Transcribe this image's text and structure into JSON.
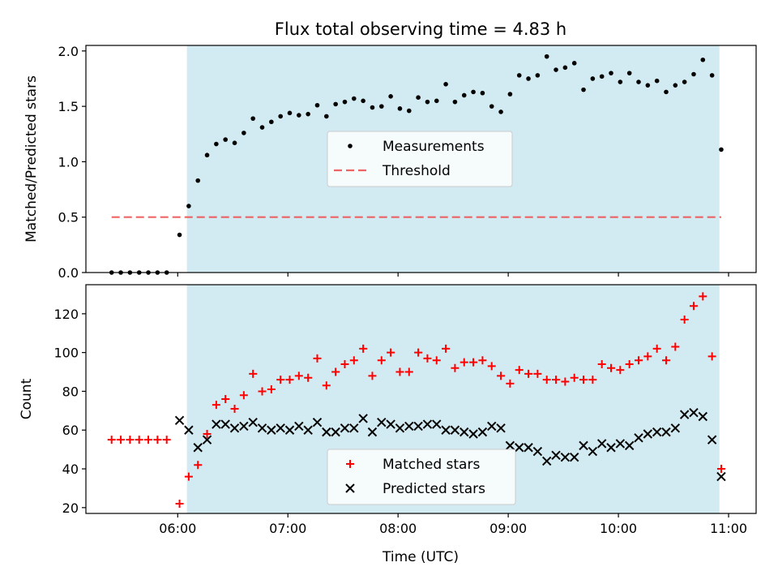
{
  "title": "Flux total observing time = 4.83 h",
  "xlabel": "Time (UTC)",
  "colors": {
    "highlight": "#add8e6",
    "measurement": "#000000",
    "threshold": "#ee5555",
    "matched": "#ff0000",
    "predicted": "#000000"
  },
  "chart_data": [
    {
      "type": "scatter",
      "ylabel": "Matched/Predicted stars",
      "xlim": [
        "05:10",
        "11:15"
      ],
      "ylim": [
        0,
        2.05
      ],
      "x_ticks": [
        "06:00",
        "07:00",
        "08:00",
        "09:00",
        "10:00",
        "11:00"
      ],
      "y_ticks": [
        "0.0",
        "0.5",
        "1.0",
        "1.5",
        "2.0"
      ],
      "shaded_span": [
        "06:05",
        "10:55"
      ],
      "legend_position": "center",
      "series": [
        {
          "name": "Measurements",
          "marker": "dot",
          "points": [
            [
              "05:24",
              0.0
            ],
            [
              "05:29",
              0.0
            ],
            [
              "05:34",
              0.0
            ],
            [
              "05:39",
              0.0
            ],
            [
              "05:44",
              0.0
            ],
            [
              "05:49",
              0.0
            ],
            [
              "05:54",
              0.0
            ],
            [
              "06:01",
              0.34
            ],
            [
              "06:06",
              0.6
            ],
            [
              "06:11",
              0.83
            ],
            [
              "06:16",
              1.06
            ],
            [
              "06:21",
              1.16
            ],
            [
              "06:26",
              1.2
            ],
            [
              "06:31",
              1.17
            ],
            [
              "06:36",
              1.26
            ],
            [
              "06:41",
              1.39
            ],
            [
              "06:46",
              1.31
            ],
            [
              "06:51",
              1.36
            ],
            [
              "06:56",
              1.41
            ],
            [
              "07:01",
              1.44
            ],
            [
              "07:06",
              1.42
            ],
            [
              "07:11",
              1.43
            ],
            [
              "07:16",
              1.51
            ],
            [
              "07:21",
              1.41
            ],
            [
              "07:26",
              1.52
            ],
            [
              "07:31",
              1.54
            ],
            [
              "07:36",
              1.57
            ],
            [
              "07:41",
              1.55
            ],
            [
              "07:46",
              1.49
            ],
            [
              "07:51",
              1.5
            ],
            [
              "07:56",
              1.59
            ],
            [
              "08:01",
              1.48
            ],
            [
              "08:06",
              1.46
            ],
            [
              "08:11",
              1.58
            ],
            [
              "08:16",
              1.54
            ],
            [
              "08:21",
              1.55
            ],
            [
              "08:26",
              1.7
            ],
            [
              "08:31",
              1.54
            ],
            [
              "08:36",
              1.6
            ],
            [
              "08:41",
              1.63
            ],
            [
              "08:46",
              1.62
            ],
            [
              "08:51",
              1.5
            ],
            [
              "08:56",
              1.45
            ],
            [
              "09:01",
              1.61
            ],
            [
              "09:06",
              1.78
            ],
            [
              "09:11",
              1.75
            ],
            [
              "09:16",
              1.78
            ],
            [
              "09:21",
              1.95
            ],
            [
              "09:26",
              1.83
            ],
            [
              "09:31",
              1.85
            ],
            [
              "09:36",
              1.89
            ],
            [
              "09:41",
              1.65
            ],
            [
              "09:46",
              1.75
            ],
            [
              "09:51",
              1.77
            ],
            [
              "09:56",
              1.8
            ],
            [
              "10:01",
              1.72
            ],
            [
              "10:06",
              1.8
            ],
            [
              "10:11",
              1.72
            ],
            [
              "10:16",
              1.69
            ],
            [
              "10:21",
              1.73
            ],
            [
              "10:26",
              1.63
            ],
            [
              "10:31",
              1.69
            ],
            [
              "10:36",
              1.72
            ],
            [
              "10:41",
              1.79
            ],
            [
              "10:46",
              1.92
            ],
            [
              "10:51",
              1.78
            ],
            [
              "10:56",
              1.11
            ]
          ]
        },
        {
          "name": "Threshold",
          "marker": "dashed-line",
          "points": [
            [
              "05:24",
              0.5
            ],
            [
              "10:56",
              0.5
            ]
          ]
        }
      ]
    },
    {
      "type": "scatter",
      "ylabel": "Count",
      "xlim": [
        "05:10",
        "11:15"
      ],
      "ylim": [
        17,
        135
      ],
      "x_ticks": [
        "06:00",
        "07:00",
        "08:00",
        "09:00",
        "10:00",
        "11:00"
      ],
      "y_ticks": [
        "20",
        "40",
        "60",
        "80",
        "100",
        "120"
      ],
      "shaded_span": [
        "06:05",
        "10:55"
      ],
      "legend_position": "lower center",
      "series": [
        {
          "name": "Matched stars",
          "marker": "plus",
          "points": [
            [
              "05:24",
              55
            ],
            [
              "05:29",
              55
            ],
            [
              "05:34",
              55
            ],
            [
              "05:39",
              55
            ],
            [
              "05:44",
              55
            ],
            [
              "05:49",
              55
            ],
            [
              "05:54",
              55
            ],
            [
              "06:01",
              22
            ],
            [
              "06:06",
              36
            ],
            [
              "06:11",
              42
            ],
            [
              "06:16",
              58
            ],
            [
              "06:21",
              73
            ],
            [
              "06:26",
              76
            ],
            [
              "06:31",
              71
            ],
            [
              "06:36",
              78
            ],
            [
              "06:41",
              89
            ],
            [
              "06:46",
              80
            ],
            [
              "06:51",
              81
            ],
            [
              "06:56",
              86
            ],
            [
              "07:01",
              86
            ],
            [
              "07:06",
              88
            ],
            [
              "07:11",
              87
            ],
            [
              "07:16",
              97
            ],
            [
              "07:21",
              83
            ],
            [
              "07:26",
              90
            ],
            [
              "07:31",
              94
            ],
            [
              "07:36",
              96
            ],
            [
              "07:41",
              102
            ],
            [
              "07:46",
              88
            ],
            [
              "07:51",
              96
            ],
            [
              "07:56",
              100
            ],
            [
              "08:01",
              90
            ],
            [
              "08:06",
              90
            ],
            [
              "08:11",
              100
            ],
            [
              "08:16",
              97
            ],
            [
              "08:21",
              96
            ],
            [
              "08:26",
              102
            ],
            [
              "08:31",
              92
            ],
            [
              "08:36",
              95
            ],
            [
              "08:41",
              95
            ],
            [
              "08:46",
              96
            ],
            [
              "08:51",
              93
            ],
            [
              "08:56",
              88
            ],
            [
              "09:01",
              84
            ],
            [
              "09:06",
              91
            ],
            [
              "09:11",
              89
            ],
            [
              "09:16",
              89
            ],
            [
              "09:21",
              86
            ],
            [
              "09:26",
              86
            ],
            [
              "09:31",
              85
            ],
            [
              "09:36",
              87
            ],
            [
              "09:41",
              86
            ],
            [
              "09:46",
              86
            ],
            [
              "09:51",
              94
            ],
            [
              "09:56",
              92
            ],
            [
              "10:01",
              91
            ],
            [
              "10:06",
              94
            ],
            [
              "10:11",
              96
            ],
            [
              "10:16",
              98
            ],
            [
              "10:21",
              102
            ],
            [
              "10:26",
              96
            ],
            [
              "10:31",
              103
            ],
            [
              "10:36",
              117
            ],
            [
              "10:41",
              124
            ],
            [
              "10:46",
              129
            ],
            [
              "10:51",
              98
            ],
            [
              "10:56",
              40
            ]
          ]
        },
        {
          "name": "Predicted stars",
          "marker": "x",
          "points": [
            [
              "06:01",
              65
            ],
            [
              "06:06",
              60
            ],
            [
              "06:11",
              51
            ],
            [
              "06:16",
              55
            ],
            [
              "06:21",
              63
            ],
            [
              "06:26",
              63
            ],
            [
              "06:31",
              61
            ],
            [
              "06:36",
              62
            ],
            [
              "06:41",
              64
            ],
            [
              "06:46",
              61
            ],
            [
              "06:51",
              60
            ],
            [
              "06:56",
              61
            ],
            [
              "07:01",
              60
            ],
            [
              "07:06",
              62
            ],
            [
              "07:11",
              60
            ],
            [
              "07:16",
              64
            ],
            [
              "07:21",
              59
            ],
            [
              "07:26",
              59
            ],
            [
              "07:31",
              61
            ],
            [
              "07:36",
              61
            ],
            [
              "07:41",
              66
            ],
            [
              "07:46",
              59
            ],
            [
              "07:51",
              64
            ],
            [
              "07:56",
              63
            ],
            [
              "08:01",
              61
            ],
            [
              "08:06",
              62
            ],
            [
              "08:11",
              62
            ],
            [
              "08:16",
              63
            ],
            [
              "08:21",
              63
            ],
            [
              "08:26",
              60
            ],
            [
              "08:31",
              60
            ],
            [
              "08:36",
              59
            ],
            [
              "08:41",
              58
            ],
            [
              "08:46",
              59
            ],
            [
              "08:51",
              62
            ],
            [
              "08:56",
              61
            ],
            [
              "09:01",
              52
            ],
            [
              "09:06",
              51
            ],
            [
              "09:11",
              51
            ],
            [
              "09:16",
              49
            ],
            [
              "09:21",
              44
            ],
            [
              "09:26",
              47
            ],
            [
              "09:31",
              46
            ],
            [
              "09:36",
              46
            ],
            [
              "09:41",
              52
            ],
            [
              "09:46",
              49
            ],
            [
              "09:51",
              53
            ],
            [
              "09:56",
              51
            ],
            [
              "10:01",
              53
            ],
            [
              "10:06",
              52
            ],
            [
              "10:11",
              56
            ],
            [
              "10:16",
              58
            ],
            [
              "10:21",
              59
            ],
            [
              "10:26",
              59
            ],
            [
              "10:31",
              61
            ],
            [
              "10:36",
              68
            ],
            [
              "10:41",
              69
            ],
            [
              "10:46",
              67
            ],
            [
              "10:51",
              55
            ],
            [
              "10:56",
              36
            ]
          ]
        }
      ]
    }
  ]
}
